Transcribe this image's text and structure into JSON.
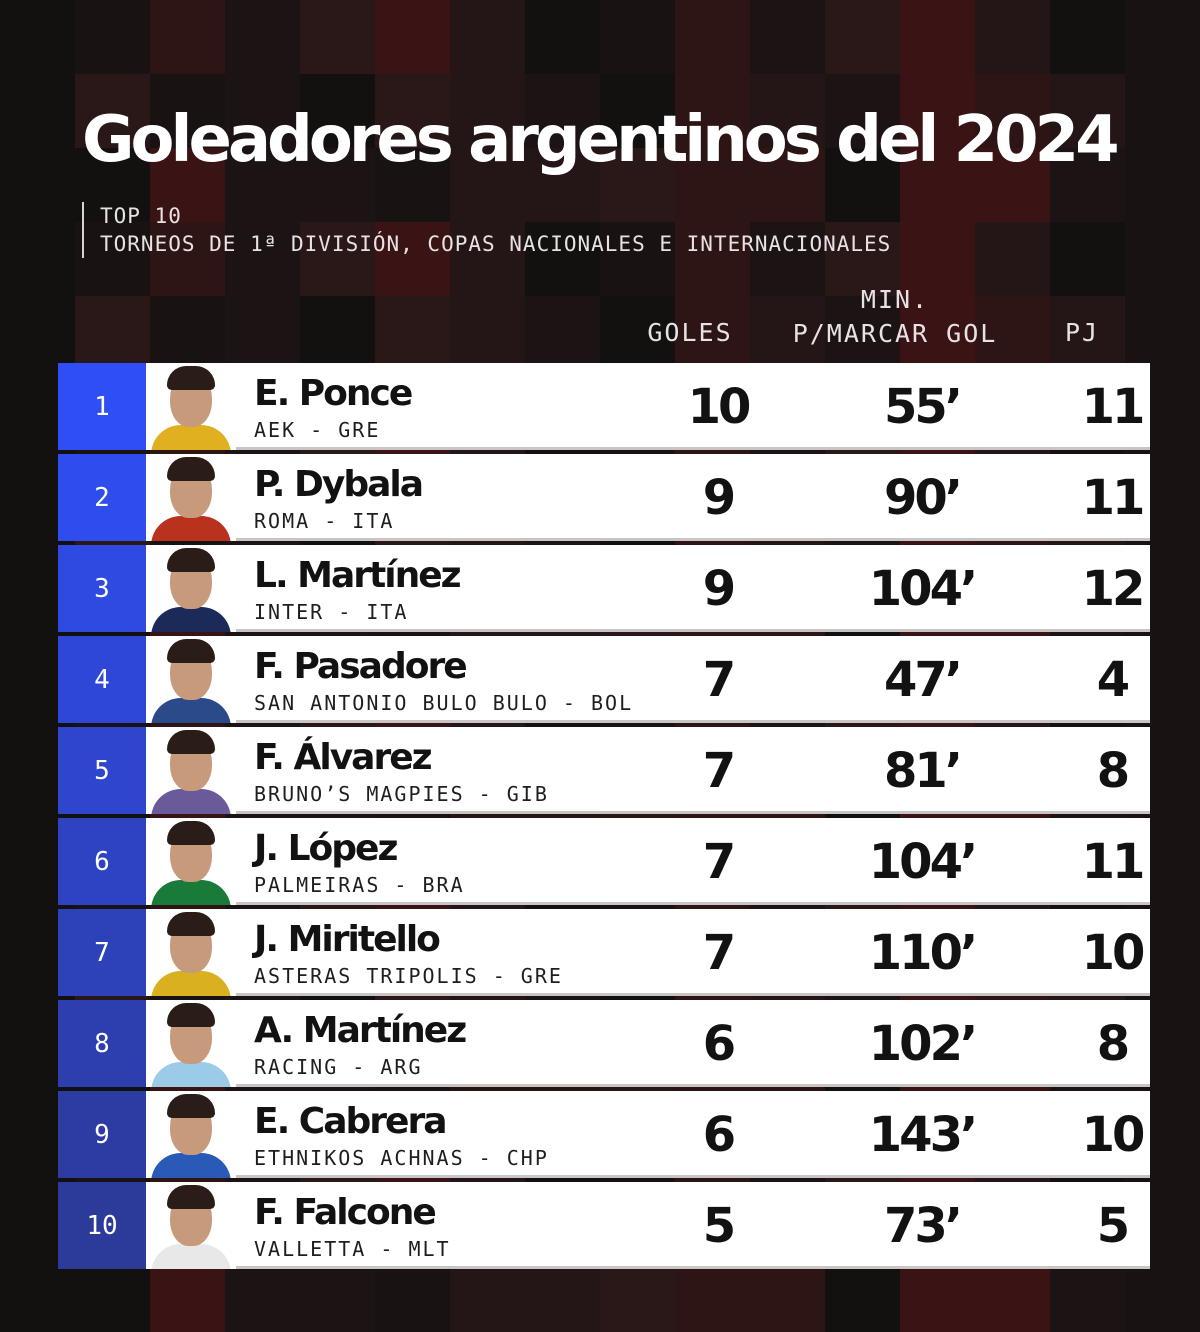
{
  "title": "Goleadores argentinos del 2024",
  "subtitle": {
    "line1": "TOP 10",
    "line2": "TORNEOS DE 1ª DIVISIÓN, COPAS NACIONALES E INTERNACIONALES"
  },
  "columns": {
    "goles": "GOLES",
    "min_line1": "MIN.",
    "min_line2": "P/MARCAR GOL",
    "pj": "PJ"
  },
  "colors": {
    "rank_top": "#2f4ef6",
    "rank_bottom": "#2c3a99",
    "background": "#161212",
    "accent_dark_red": "#3a1414"
  },
  "players": [
    {
      "rank": "1",
      "name": "E. Ponce",
      "club": "AEK - GRE",
      "goles": "10",
      "min": "55’",
      "pj": "11",
      "kit": "#e0b020"
    },
    {
      "rank": "2",
      "name": "P. Dybala",
      "club": "ROMA - ITA",
      "goles": "9",
      "min": "90’",
      "pj": "11",
      "kit": "#b8321e"
    },
    {
      "rank": "3",
      "name": "L. Martínez",
      "club": "INTER - ITA",
      "goles": "9",
      "min": "104’",
      "pj": "12",
      "kit": "#1c2a5a"
    },
    {
      "rank": "4",
      "name": "F. Pasadore",
      "club": "SAN ANTONIO BULO BULO - BOL",
      "goles": "7",
      "min": "47’",
      "pj": "4",
      "kit": "#2a4a8a"
    },
    {
      "rank": "5",
      "name": "F. Álvarez",
      "club": "BRUNO’S MAGPIES - GIB",
      "goles": "7",
      "min": "81’",
      "pj": "8",
      "kit": "#6a5a9a"
    },
    {
      "rank": "6",
      "name": "J. López",
      "club": "PALMEIRAS - BRA",
      "goles": "7",
      "min": "104’",
      "pj": "11",
      "kit": "#1a7a3a"
    },
    {
      "rank": "7",
      "name": "J. Miritello",
      "club": "ASTERAS TRIPOLIS - GRE",
      "goles": "7",
      "min": "110’",
      "pj": "10",
      "kit": "#d8b020"
    },
    {
      "rank": "8",
      "name": "A. Martínez",
      "club": "RACING - ARG",
      "goles": "6",
      "min": "102’",
      "pj": "8",
      "kit": "#9ccbe8"
    },
    {
      "rank": "9",
      "name": "E. Cabrera",
      "club": "ETHNIKOS ACHNAS - CHP",
      "goles": "6",
      "min": "143’",
      "pj": "10",
      "kit": "#2a5ab8"
    },
    {
      "rank": "10",
      "name": "F. Falcone",
      "club": "VALLETTA - MLT",
      "goles": "5",
      "min": "73’",
      "pj": "5",
      "kit": "#e8e8e8"
    }
  ]
}
